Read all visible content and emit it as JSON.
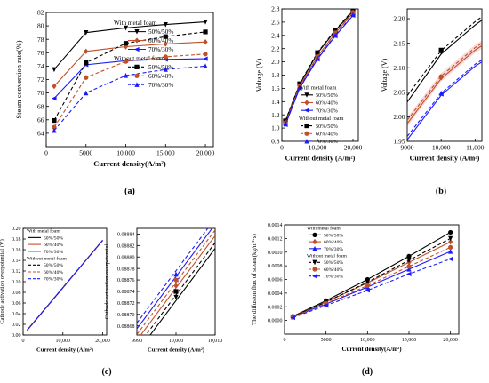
{
  "colors": {
    "black": "#000000",
    "brown": "#c0502a",
    "blue": "#1a1aff",
    "band": "#f6c9c9"
  },
  "chart_data": [
    {
      "id": "a",
      "type": "line",
      "panel_label": "(a)",
      "xlabel": "Current density(A/m²)",
      "ylabel": "Steam conversion rate(%)",
      "x": [
        1000,
        5000,
        10000,
        15000,
        20000
      ],
      "xlim": [
        0,
        21000
      ],
      "xticks": [
        0,
        5000,
        10000,
        15000,
        20000
      ],
      "xticklabels": [
        "0",
        "5000",
        "10,000",
        "15,000",
        "20,000"
      ],
      "ylim": [
        62,
        82
      ],
      "yticks": [
        64,
        66,
        68,
        70,
        72,
        74,
        76,
        78,
        80,
        82
      ],
      "yticklabels": [
        "64",
        "66",
        "68",
        "70",
        "72",
        "74",
        "76",
        "78",
        "80",
        "82"
      ],
      "legend": {
        "position": "right",
        "group1_title": "With metal foam",
        "group2_title": "Without metal foam"
      },
      "series": [
        {
          "name": "50%/50%",
          "group": 1,
          "color": "black",
          "dash": false,
          "marker": "tri-down",
          "values": [
            73.5,
            79.0,
            79.7,
            80.2,
            80.6
          ]
        },
        {
          "name": "60%/40%",
          "group": 1,
          "color": "brown",
          "dash": false,
          "marker": "diamond",
          "values": [
            71.0,
            76.2,
            76.9,
            77.3,
            77.6
          ]
        },
        {
          "name": "70%/30%",
          "group": 1,
          "color": "blue",
          "dash": false,
          "marker": "tri-left",
          "values": [
            69.2,
            74.2,
            74.8,
            75.0,
            75.1
          ]
        },
        {
          "name": "50%/50%",
          "group": 2,
          "color": "black",
          "dash": true,
          "marker": "square",
          "values": [
            65.9,
            74.5,
            77.4,
            78.4,
            79.1
          ]
        },
        {
          "name": "60%/40%",
          "group": 2,
          "color": "brown",
          "dash": true,
          "marker": "circle",
          "values": [
            64.9,
            72.3,
            74.7,
            75.4,
            75.8
          ]
        },
        {
          "name": "70%/30%",
          "group": 2,
          "color": "blue",
          "dash": true,
          "marker": "tri-up",
          "values": [
            64.4,
            70.0,
            72.6,
            73.5,
            74.0
          ]
        }
      ]
    },
    {
      "id": "b1",
      "type": "line",
      "panel_label": "(b)",
      "xlabel": "Current density (A/m²)",
      "ylabel": "Voltage (V)",
      "x": [
        1000,
        5000,
        10000,
        15000,
        20000
      ],
      "xlim": [
        0,
        21500
      ],
      "xticks": [
        0,
        10000,
        20000
      ],
      "xticklabels": [
        "0",
        "10,000",
        "20,000"
      ],
      "ylim": [
        0.8,
        2.8
      ],
      "yticks": [
        0.8,
        1.0,
        1.2,
        1.4,
        1.6,
        1.8,
        2.0,
        2.2,
        2.4,
        2.6,
        2.8
      ],
      "yticklabels": [
        "0.8",
        "1.0",
        "1.2",
        "1.4",
        "1.6",
        "1.8",
        "2.0",
        "2.2",
        "2.4",
        "2.6",
        "2.8"
      ],
      "legend": {
        "position": "bottom-right",
        "group1_title": "With metal foam",
        "group2_title": "Without metal foam"
      },
      "series": [
        {
          "name": "50%/50%",
          "group": 1,
          "color": "black",
          "dash": false,
          "marker": "tri-down",
          "values": [
            1.1,
            1.66,
            2.13,
            2.47,
            2.77
          ]
        },
        {
          "name": "60%/40%",
          "group": 1,
          "color": "brown",
          "dash": false,
          "marker": "diamond",
          "values": [
            1.07,
            1.63,
            2.08,
            2.43,
            2.74
          ]
        },
        {
          "name": "70%/30%",
          "group": 1,
          "color": "blue",
          "dash": false,
          "marker": "tri-left",
          "values": [
            1.05,
            1.6,
            2.04,
            2.39,
            2.7
          ]
        },
        {
          "name": "50%/50%",
          "group": 2,
          "color": "black",
          "dash": true,
          "marker": "square",
          "values": [
            1.11,
            1.67,
            2.14,
            2.48,
            2.78
          ]
        },
        {
          "name": "60%/40%",
          "group": 2,
          "color": "brown",
          "dash": true,
          "marker": "circle",
          "values": [
            1.08,
            1.64,
            2.08,
            2.44,
            2.75
          ]
        },
        {
          "name": "70%/30%",
          "group": 2,
          "color": "blue",
          "dash": true,
          "marker": "tri-up",
          "values": [
            1.06,
            1.61,
            2.05,
            2.4,
            2.71
          ]
        }
      ]
    },
    {
      "id": "b2",
      "type": "line",
      "xlabel": "Current density (A/m²)",
      "ylabel": "Voltage (V)",
      "x": [
        9000,
        10000,
        11000,
        11200
      ],
      "xlim": [
        9000,
        11200
      ],
      "xticks": [
        9000,
        10000,
        11000
      ],
      "xticklabels": [
        "9000",
        "10,000",
        "11,000"
      ],
      "ylim": [
        1.95,
        2.22
      ],
      "yticks": [
        1.95,
        2.0,
        2.05,
        2.1,
        2.15,
        2.2
      ],
      "yticklabels": [
        "1.95",
        "2.00",
        "2.05",
        "2.10",
        "2.15",
        "2.20"
      ],
      "band": true,
      "series": [
        {
          "name": "50%/50%",
          "group": 1,
          "color": "black",
          "dash": false,
          "values": [
            2.03,
            2.128,
            2.187,
            2.197
          ]
        },
        {
          "name": "60%/40%",
          "group": 1,
          "color": "brown",
          "dash": false,
          "values": [
            1.986,
            2.078,
            2.136,
            2.145
          ]
        },
        {
          "name": "70%/30%",
          "group": 1,
          "color": "blue",
          "dash": false,
          "values": [
            1.953,
            2.044,
            2.103,
            2.112
          ]
        },
        {
          "name": "50%/50%",
          "group": 2,
          "color": "black",
          "dash": true,
          "values": [
            2.043,
            2.135,
            2.194,
            2.204
          ]
        },
        {
          "name": "60%/40%",
          "group": 2,
          "color": "brown",
          "dash": true,
          "values": [
            1.993,
            2.083,
            2.141,
            2.15
          ]
        },
        {
          "name": "70%/30%",
          "group": 2,
          "color": "blue",
          "dash": true,
          "values": [
            1.96,
            2.048,
            2.107,
            2.116
          ]
        }
      ],
      "point_x": 10000,
      "point_values": [
        2.132,
        2.08,
        2.046,
        2.136,
        2.082,
        2.048
      ]
    },
    {
      "id": "c1",
      "type": "line",
      "panel_label": "(c)",
      "xlabel": "Current density (A/m²)",
      "ylabel": "Cathode activation overpotential (V)",
      "x": [
        1000,
        5000,
        10000,
        15000,
        20000
      ],
      "xlim": [
        0,
        21000
      ],
      "xticks": [
        0,
        10000,
        20000
      ],
      "xticklabels": [
        "0",
        "10,000",
        "20,000"
      ],
      "ylim": [
        0.0,
        0.2
      ],
      "yticks": [
        0.0,
        0.02,
        0.04,
        0.06,
        0.08,
        0.1,
        0.12,
        0.14,
        0.16,
        0.18,
        0.2
      ],
      "yticklabels": [
        "0.00",
        "0.02",
        "0.04",
        "0.06",
        "0.08",
        "0.10",
        "0.12",
        "0.14",
        "0.16",
        "0.18",
        "0.20"
      ],
      "legend": {
        "position": "top-left",
        "group1_title": "With metal foam",
        "group2_title": "Without metal foam"
      },
      "series": [
        {
          "name": "50%/50%",
          "group": 1,
          "color": "black",
          "dash": false,
          "values": [
            0.0089,
            0.0444,
            0.0888,
            0.1332,
            0.1776
          ]
        },
        {
          "name": "60%/40%",
          "group": 1,
          "color": "brown",
          "dash": false,
          "values": [
            0.0089,
            0.0444,
            0.0888,
            0.1332,
            0.1776
          ]
        },
        {
          "name": "70%/30%",
          "group": 1,
          "color": "blue",
          "dash": false,
          "values": [
            0.0089,
            0.0444,
            0.0888,
            0.1332,
            0.1776
          ]
        },
        {
          "name": "50%/50%",
          "group": 2,
          "color": "black",
          "dash": true,
          "values": [
            0.0089,
            0.0444,
            0.0888,
            0.1332,
            0.1776
          ]
        },
        {
          "name": "60%/40%",
          "group": 2,
          "color": "brown",
          "dash": true,
          "values": [
            0.0089,
            0.0444,
            0.0888,
            0.1332,
            0.1776
          ]
        },
        {
          "name": "70%/30%",
          "group": 2,
          "color": "blue",
          "dash": true,
          "values": [
            0.0089,
            0.0444,
            0.0888,
            0.1332,
            0.1776
          ]
        }
      ]
    },
    {
      "id": "c2",
      "type": "line",
      "xlabel": "Current density (A/m²)",
      "ylabel": "Cathode activation overpotential",
      "x": [
        9990,
        10010
      ],
      "xlim": [
        9990,
        10010
      ],
      "xticks": [
        9990,
        10000,
        10010
      ],
      "xticklabels": [
        "9990",
        "10,000",
        "10,010"
      ],
      "ylim": [
        0.088664,
        0.08885
      ],
      "yticks": [
        0.08868,
        0.0887,
        0.08872,
        0.08874,
        0.08876,
        0.08878,
        0.0888,
        0.08882,
        0.08884
      ],
      "yticklabels": [
        "0.08868",
        "0.08870",
        "0.08872",
        "0.08874",
        "0.08876",
        "0.08878",
        "0.08880",
        "0.08882",
        "0.08884"
      ],
      "series": [
        {
          "name": "50%/50%",
          "group": 1,
          "color": "black",
          "dash": false,
          "values": [
            0.088633,
            0.088815
          ]
        },
        {
          "name": "60%/40%",
          "group": 1,
          "color": "brown",
          "dash": false,
          "values": [
            0.088655,
            0.088837
          ]
        },
        {
          "name": "70%/30%",
          "group": 1,
          "color": "blue",
          "dash": false,
          "values": [
            0.088675,
            0.088857
          ]
        },
        {
          "name": "50%/50%",
          "group": 2,
          "color": "black",
          "dash": true,
          "values": [
            0.088643,
            0.088825
          ]
        },
        {
          "name": "60%/40%",
          "group": 2,
          "color": "brown",
          "dash": true,
          "values": [
            0.088665,
            0.088847
          ]
        },
        {
          "name": "70%/30%",
          "group": 2,
          "color": "blue",
          "dash": true,
          "values": [
            0.088685,
            0.088867
          ]
        }
      ],
      "point_x": 10000,
      "point_values": [
        0.08873,
        0.08875,
        0.08876,
        0.08874,
        0.08876,
        0.08877
      ]
    },
    {
      "id": "d",
      "type": "line",
      "panel_label": "(d)",
      "xlabel": "Current density(A/m²)",
      "ylabel": "The diffusion flux of steam(kg/m²·s)",
      "x": [
        1000,
        5000,
        10000,
        15000,
        20000
      ],
      "xlim": [
        0,
        21000
      ],
      "xticks": [
        0,
        5000,
        10000,
        15000,
        20000
      ],
      "xticklabels": [
        "0",
        "5000",
        "10,000",
        "15,000",
        "20,000"
      ],
      "ylim": [
        -0.0002,
        0.0014
      ],
      "yticks": [
        0.0,
        0.0002,
        0.0004,
        0.0006,
        0.0008,
        0.001,
        0.0012,
        0.0014
      ],
      "yticklabels": [
        "0.0000",
        "0.0002",
        "0.0004",
        "0.0006",
        "0.0008",
        "0.0010",
        "0.0012",
        "0.0014"
      ],
      "legend": {
        "position": "top-left",
        "group1_title": "With metal foam",
        "group2_title": "Without metal foam"
      },
      "series": [
        {
          "name": "50%/50%",
          "group": 1,
          "color": "black",
          "dash": false,
          "marker": "circle",
          "values": [
            6e-05,
            0.00029,
            0.0006,
            0.00094,
            0.00129
          ]
        },
        {
          "name": "60%/40%",
          "group": 1,
          "color": "brown",
          "dash": false,
          "marker": "diamond",
          "values": [
            5e-05,
            0.00027,
            0.00055,
            0.00085,
            0.00115
          ]
        },
        {
          "name": "70%/30%",
          "group": 1,
          "color": "blue",
          "dash": false,
          "marker": "tri-up",
          "values": [
            5e-05,
            0.00024,
            0.00049,
            0.00075,
            0.00101
          ]
        },
        {
          "name": "50%/50%",
          "group": 2,
          "color": "black",
          "dash": true,
          "marker": "tri-down",
          "values": [
            5e-05,
            0.00027,
            0.00056,
            0.00088,
            0.0012
          ]
        },
        {
          "name": "60%/40%",
          "group": 2,
          "color": "brown",
          "dash": true,
          "marker": "circle",
          "values": [
            5e-05,
            0.00025,
            0.00051,
            0.00079,
            0.00107
          ]
        },
        {
          "name": "70%/30%",
          "group": 2,
          "color": "blue",
          "dash": true,
          "marker": "tri-left",
          "values": [
            4e-05,
            0.00022,
            0.00044,
            0.00068,
            0.0009
          ]
        }
      ]
    }
  ]
}
